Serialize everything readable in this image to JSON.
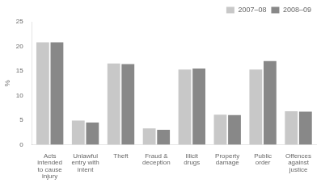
{
  "chart_data": {
    "type": "bar",
    "categories": [
      "Acts\nintended\nto cause\ninjury",
      "Unlawful\nentry with\nintent",
      "Theft",
      "Fraud &\ndeception",
      "Illicit\ndrugs",
      "Property\ndamage",
      "Public\norder",
      "Offences\nagainst\njustice"
    ],
    "series": [
      {
        "name": "2007–08",
        "color": "#c8c8c8",
        "values": [
          20.8,
          4.9,
          16.5,
          3.3,
          15.3,
          6.1,
          15.3,
          6.8
        ]
      },
      {
        "name": "2008–09",
        "color": "#888888",
        "values": [
          20.8,
          4.5,
          16.4,
          3.0,
          15.5,
          6.0,
          17.0,
          6.7
        ]
      }
    ],
    "ylabel": "%",
    "ylim": [
      0,
      25
    ],
    "yticks": [
      0,
      5,
      10,
      15,
      20,
      25
    ],
    "grid": false,
    "legend": "upper right"
  }
}
